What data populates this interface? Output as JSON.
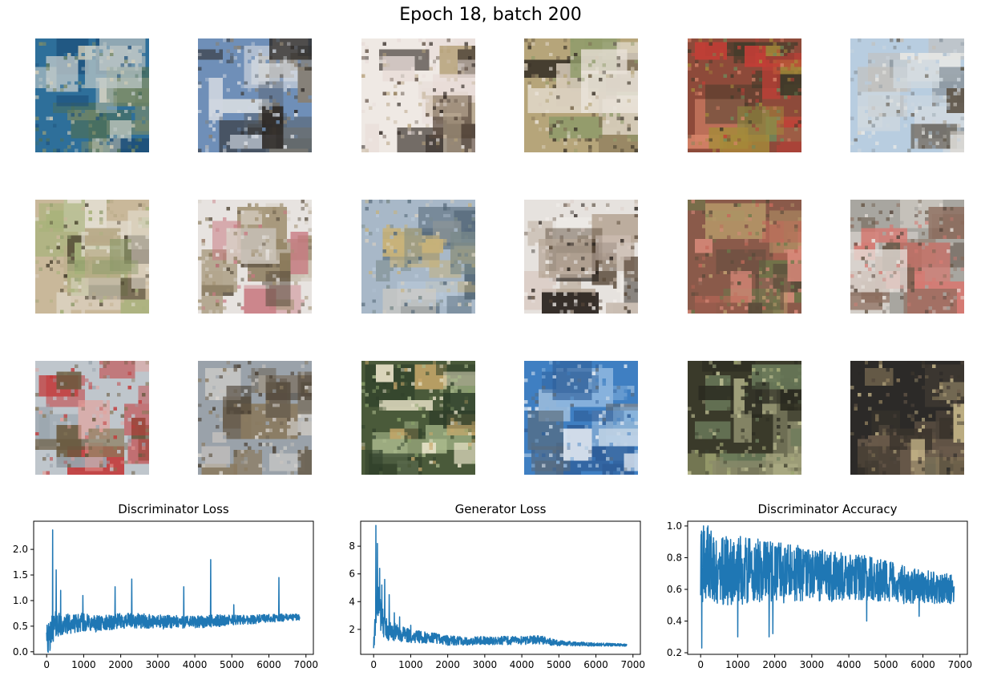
{
  "figure": {
    "title": "Epoch 18, batch 200"
  },
  "sample_grid": {
    "rows": 3,
    "cols": 6,
    "samples": [
      {
        "palette": [
          "#2e6f9a",
          "#bfc9c8",
          "#7b8b6a",
          "#1d4f7a",
          "#d8d0b8",
          "#4c6f5a"
        ]
      },
      {
        "palette": [
          "#6f8fb8",
          "#2a2622",
          "#cfd6e0",
          "#8a8070",
          "#56606a",
          "#d9dde2"
        ]
      },
      {
        "palette": [
          "#efe9e4",
          "#2d2520",
          "#b7a37c",
          "#e8dcd8",
          "#5a4a3e",
          "#c8b8a0"
        ]
      },
      {
        "palette": [
          "#b6a57a",
          "#3a3328",
          "#d8cdbb",
          "#8f9b6a",
          "#e9e2d8",
          "#7a6a50"
        ]
      },
      {
        "palette": [
          "#8d4a3a",
          "#c23e36",
          "#a58a3a",
          "#3f3a2a",
          "#6f8a5a",
          "#d8856a"
        ]
      },
      {
        "palette": [
          "#b8cde0",
          "#cfd8df",
          "#5e5548",
          "#eaeae6",
          "#8f9aa3",
          "#c4bfb8"
        ]
      },
      {
        "palette": [
          "#c9b89a",
          "#3b3323",
          "#8d9a6a",
          "#b8aa88",
          "#a7b27a",
          "#e2dccf"
        ]
      },
      {
        "palette": [
          "#e7e3e0",
          "#8a7a5a",
          "#c87a82",
          "#5b5040",
          "#d9d2c8",
          "#a09070"
        ]
      },
      {
        "palette": [
          "#a8b8c8",
          "#c8b27a",
          "#7a8a8a",
          "#d8d0c0",
          "#566a7a",
          "#b8c8d8"
        ]
      },
      {
        "palette": [
          "#e6e2de",
          "#2b2520",
          "#b8a898",
          "#5b4a3a",
          "#f0ece8",
          "#d8c8c0"
        ]
      },
      {
        "palette": [
          "#8a5a4a",
          "#c46a5a",
          "#6a7a4a",
          "#b89a6a",
          "#d88a7a",
          "#5a4a3a"
        ]
      },
      {
        "palette": [
          "#a8a6a0",
          "#5a4a40",
          "#d67a72",
          "#8a6a5a",
          "#e6e0da",
          "#6a5a4a"
        ]
      },
      {
        "palette": [
          "#bfc6cc",
          "#c23a3a",
          "#8a7a5a",
          "#e6a09a",
          "#9aa4ad",
          "#6a5a40"
        ]
      },
      {
        "palette": [
          "#9aa2aa",
          "#4a4034",
          "#c8c4bf",
          "#8a7a60",
          "#dad6d0",
          "#6a6050"
        ]
      },
      {
        "palette": [
          "#4a5a3a",
          "#e8e2c8",
          "#8aa06a",
          "#c8a86a",
          "#2f3f2a",
          "#a8b88a"
        ]
      },
      {
        "palette": [
          "#3f7fc2",
          "#e8eef5",
          "#5a6a7a",
          "#8ab4dd",
          "#2f5f9a",
          "#c8d8e8"
        ]
      },
      {
        "palette": [
          "#3a3a2a",
          "#c8c89a",
          "#6a7a5a",
          "#8a8a6a",
          "#2a2a20",
          "#aab07a"
        ]
      },
      {
        "palette": [
          "#2c2a28",
          "#8a7a5a",
          "#4a4238",
          "#c8b88a",
          "#6a5a4a",
          "#3a342c"
        ]
      }
    ]
  },
  "chart_data": [
    {
      "type": "line",
      "title": "Discriminator Loss",
      "xlabel": "",
      "ylabel": "",
      "xlim": [
        -350,
        7200
      ],
      "ylim": [
        -0.05,
        2.55
      ],
      "x_ticks": [
        0,
        1000,
        2000,
        3000,
        4000,
        5000,
        6000,
        7000
      ],
      "x_tick_labels": [
        "0",
        "1000",
        "2000",
        "3000",
        "4000",
        "5000",
        "6000",
        "7000"
      ],
      "y_ticks": [
        0.0,
        0.5,
        1.0,
        1.5,
        2.0
      ],
      "y_tick_labels": [
        "0.0",
        "0.5",
        "1.0",
        "1.5",
        "2.0"
      ],
      "color": "#1f77b4",
      "x": [
        0,
        50,
        100,
        150,
        200,
        300,
        400,
        500,
        600,
        800,
        1000,
        1200,
        1500,
        2000,
        2500,
        3000,
        3500,
        4000,
        4500,
        5000,
        5500,
        6000,
        6500,
        6840
      ],
      "y": [
        0.55,
        0.2,
        0.3,
        0.45,
        0.5,
        0.55,
        0.5,
        0.52,
        0.55,
        0.55,
        0.58,
        0.55,
        0.55,
        0.6,
        0.6,
        0.58,
        0.58,
        0.58,
        0.6,
        0.62,
        0.63,
        0.65,
        0.67,
        0.68
      ],
      "noise_amplitude": [
        0.35,
        0.35,
        0.3,
        0.3,
        0.28,
        0.25,
        0.22,
        0.2,
        0.2,
        0.18,
        0.18,
        0.17,
        0.16,
        0.15,
        0.15,
        0.14,
        0.13,
        0.12,
        0.12,
        0.1,
        0.09,
        0.08,
        0.07,
        0.06
      ],
      "spikes": [
        [
          160,
          2.38
        ],
        [
          260,
          1.6
        ],
        [
          380,
          1.2
        ],
        [
          980,
          1.1
        ],
        [
          1850,
          1.27
        ],
        [
          2300,
          1.42
        ],
        [
          3700,
          1.27
        ],
        [
          4430,
          1.8
        ],
        [
          5050,
          0.92
        ],
        [
          6270,
          1.45
        ]
      ]
    },
    {
      "type": "line",
      "title": "Generator Loss",
      "xlabel": "",
      "ylabel": "",
      "xlim": [
        -350,
        7200
      ],
      "ylim": [
        0.2,
        9.8
      ],
      "x_ticks": [
        0,
        1000,
        2000,
        3000,
        4000,
        5000,
        6000,
        7000
      ],
      "x_tick_labels": [
        "0",
        "1000",
        "2000",
        "3000",
        "4000",
        "5000",
        "6000",
        "7000"
      ],
      "y_ticks": [
        2,
        4,
        6,
        8
      ],
      "y_tick_labels": [
        "2",
        "4",
        "6",
        "8"
      ],
      "color": "#1f77b4",
      "x": [
        0,
        50,
        100,
        150,
        200,
        300,
        400,
        500,
        700,
        1000,
        1500,
        2000,
        2500,
        3000,
        3500,
        4000,
        4500,
        4800,
        5000,
        5500,
        6000,
        6500,
        6840
      ],
      "y": [
        0.8,
        2.5,
        4.5,
        3.5,
        2.8,
        2.2,
        2.0,
        1.9,
        1.7,
        1.5,
        1.4,
        1.2,
        1.15,
        1.2,
        1.2,
        1.2,
        1.25,
        1.1,
        1.0,
        0.95,
        0.9,
        0.9,
        0.85
      ],
      "noise_amplitude": [
        0.4,
        1.0,
        1.4,
        1.2,
        1.0,
        0.9,
        0.8,
        0.7,
        0.6,
        0.5,
        0.4,
        0.35,
        0.3,
        0.3,
        0.3,
        0.3,
        0.3,
        0.25,
        0.2,
        0.15,
        0.12,
        0.1,
        0.08
      ],
      "spikes": [
        [
          60,
          9.5
        ],
        [
          100,
          8.2
        ],
        [
          160,
          6.4
        ],
        [
          220,
          5.2
        ],
        [
          300,
          5.6
        ],
        [
          420,
          4.5
        ],
        [
          560,
          3.2
        ],
        [
          700,
          2.9
        ],
        [
          1000,
          2.3
        ]
      ]
    },
    {
      "type": "line",
      "title": "Discriminator Accuracy",
      "xlabel": "",
      "ylabel": "",
      "xlim": [
        -350,
        7200
      ],
      "ylim": [
        0.19,
        1.03
      ],
      "x_ticks": [
        0,
        1000,
        2000,
        3000,
        4000,
        5000,
        6000,
        7000
      ],
      "x_tick_labels": [
        "0",
        "1000",
        "2000",
        "3000",
        "4000",
        "5000",
        "6000",
        "7000"
      ],
      "y_ticks": [
        0.2,
        0.4,
        0.6,
        0.8,
        1.0
      ],
      "y_tick_labels": [
        "0.2",
        "0.4",
        "0.6",
        "0.8",
        "1.0"
      ],
      "color": "#1f77b4",
      "x": [
        0,
        50,
        100,
        200,
        300,
        500,
        1000,
        1500,
        2000,
        2500,
        3000,
        3500,
        4000,
        4500,
        5000,
        5500,
        6000,
        6500,
        6840
      ],
      "y": [
        0.65,
        0.75,
        0.75,
        0.78,
        0.75,
        0.72,
        0.72,
        0.72,
        0.7,
        0.7,
        0.7,
        0.68,
        0.68,
        0.67,
        0.65,
        0.63,
        0.62,
        0.6,
        0.6
      ],
      "noise_amplitude": [
        0.3,
        0.25,
        0.25,
        0.22,
        0.22,
        0.22,
        0.22,
        0.2,
        0.2,
        0.18,
        0.17,
        0.16,
        0.15,
        0.14,
        0.13,
        0.12,
        0.11,
        0.1,
        0.1
      ],
      "spikes": [
        [
          30,
          0.23
        ],
        [
          80,
          1.0
        ],
        [
          200,
          1.0
        ],
        [
          1000,
          0.3
        ],
        [
          1850,
          0.3
        ],
        [
          1950,
          0.32
        ],
        [
          4480,
          0.4
        ],
        [
          5900,
          0.43
        ]
      ]
    }
  ]
}
